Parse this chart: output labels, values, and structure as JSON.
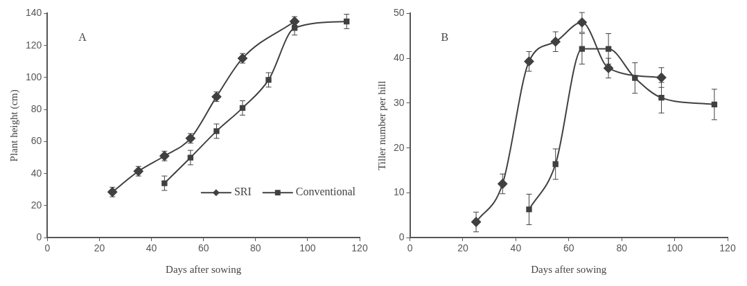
{
  "chart_data": [
    {
      "type": "line",
      "xlabel": "Days after sowing",
      "ylabel": "Plant height (cm)",
      "annotations": [
        "A"
      ],
      "xlim": [
        0,
        120
      ],
      "xticks": [
        0,
        20,
        40,
        60,
        80,
        100,
        120
      ],
      "ylim": [
        0,
        140
      ],
      "yticks": [
        0,
        20,
        40,
        60,
        80,
        100,
        120,
        140
      ],
      "grid": false,
      "legend": "bottom right",
      "series": [
        {
          "name": "SRI",
          "color": "#404040",
          "marker": "diamond",
          "x": [
            25,
            35,
            45,
            55,
            65,
            75,
            95
          ],
          "values": [
            28.5,
            41.5,
            51,
            62,
            88,
            112,
            135
          ],
          "errors": [
            3,
            3,
            3,
            3,
            3,
            3,
            3
          ]
        },
        {
          "name": "Conventional",
          "color": "#404040",
          "marker": "square",
          "x": [
            45,
            55,
            65,
            75,
            85,
            95,
            115
          ],
          "values": [
            34,
            50,
            66.5,
            81,
            98.5,
            131,
            135
          ],
          "errors": [
            4.5,
            4.5,
            4.5,
            4.5,
            4.5,
            4.5,
            4.5
          ]
        }
      ]
    },
    {
      "type": "line",
      "xlabel": "Days after sowing",
      "ylabel": "Tiller number per hill",
      "annotations": [
        "B"
      ],
      "xlim": [
        0,
        120
      ],
      "xticks": [
        0,
        20,
        40,
        60,
        80,
        100,
        120
      ],
      "ylim": [
        0,
        50
      ],
      "yticks": [
        0,
        10,
        20,
        30,
        40,
        50
      ],
      "grid": false,
      "legend": false,
      "series": [
        {
          "color": "#404040",
          "marker": "diamond",
          "x": [
            25,
            35,
            45,
            55,
            65,
            75,
            95
          ],
          "values": [
            3.5,
            12,
            39.3,
            43.7,
            48,
            37.8,
            35.7
          ],
          "errors": [
            2.2,
            2.2,
            2.2,
            2.2,
            2.2,
            2.2,
            2.2
          ]
        },
        {
          "color": "#404040",
          "marker": "square",
          "x": [
            45,
            55,
            65,
            75,
            85,
            95,
            115
          ],
          "values": [
            6.3,
            16.4,
            42.1,
            42.1,
            35.6,
            31.2,
            29.7
          ],
          "errors": [
            3.4,
            3.4,
            3.4,
            3.4,
            3.4,
            3.4,
            3.4
          ]
        }
      ]
    }
  ]
}
